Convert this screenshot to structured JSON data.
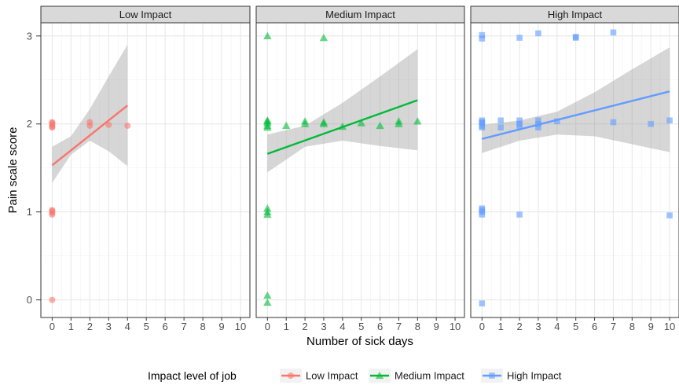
{
  "chart_data": {
    "type": "scatter",
    "facet_by": "Impact level of job",
    "facets": [
      "Low Impact",
      "Medium Impact",
      "High Impact"
    ],
    "xlabel": "Number of sick days",
    "ylabel": "Pain scale score",
    "xlim": [
      -0.6,
      10.5
    ],
    "ylim": [
      -0.2,
      3.15
    ],
    "x_ticks": [
      "0",
      "1",
      "2",
      "3",
      "4",
      "5",
      "6",
      "7",
      "8",
      "9",
      "10"
    ],
    "y_ticks": [
      "0",
      "1",
      "2",
      "3"
    ],
    "grid": true,
    "theme": "bw",
    "legend": {
      "title": "Impact level of job",
      "position": "bottom",
      "items": [
        "Low Impact",
        "Medium Impact",
        "High Impact"
      ]
    },
    "series": [
      {
        "name": "Low Impact",
        "color": "#F8766D",
        "marker": "circle",
        "points": [
          [
            0,
            2.02
          ],
          [
            0,
            1.99
          ],
          [
            0,
            1.97
          ],
          [
            0,
            2.01
          ],
          [
            0,
            1.96
          ],
          [
            0,
            1.02
          ],
          [
            0,
            0.99
          ],
          [
            0,
            0.97
          ],
          [
            0,
            1.01
          ],
          [
            0,
            0.0
          ],
          [
            2,
            2.02
          ],
          [
            2,
            1.98
          ],
          [
            3,
            1.99
          ],
          [
            4,
            1.98
          ]
        ],
        "fit": {
          "x": [
            0,
            4
          ],
          "y": [
            1.53,
            2.21
          ]
        },
        "ci": {
          "x": [
            0,
            1,
            2,
            3,
            4
          ],
          "lower": [
            1.33,
            1.65,
            1.81,
            1.69,
            1.52
          ],
          "upper": [
            1.74,
            1.86,
            2.17,
            2.54,
            2.9
          ]
        }
      },
      {
        "name": "Medium Impact",
        "color": "#00BA38",
        "marker": "triangle",
        "points": [
          [
            0,
            3.0
          ],
          [
            3,
            2.98
          ],
          [
            0,
            2.04
          ],
          [
            0,
            2.01
          ],
          [
            0,
            1.98
          ],
          [
            0,
            1.96
          ],
          [
            0,
            2.03
          ],
          [
            1,
            1.98
          ],
          [
            2,
            2.03
          ],
          [
            2,
            2.0
          ],
          [
            3,
            2.02
          ],
          [
            3,
            2.0
          ],
          [
            4,
            1.97
          ],
          [
            5,
            2.01
          ],
          [
            6,
            1.98
          ],
          [
            7,
            2.03
          ],
          [
            7,
            2.0
          ],
          [
            8,
            2.03
          ],
          [
            0,
            1.04
          ],
          [
            0,
            1.0
          ],
          [
            0,
            0.97
          ],
          [
            0,
            0.05
          ],
          [
            0,
            -0.03
          ]
        ],
        "fit": {
          "x": [
            0,
            8
          ],
          "y": [
            1.66,
            2.27
          ]
        },
        "ci": {
          "x": [
            0,
            2,
            4,
            6,
            8
          ],
          "lower": [
            1.45,
            1.74,
            1.81,
            1.75,
            1.7
          ],
          "upper": [
            1.88,
            1.98,
            2.24,
            2.54,
            2.85
          ]
        }
      },
      {
        "name": "High Impact",
        "color": "#619CFF",
        "marker": "square",
        "points": [
          [
            0,
            3.01
          ],
          [
            0,
            2.97
          ],
          [
            2,
            2.98
          ],
          [
            3,
            3.03
          ],
          [
            5,
            2.99
          ],
          [
            5,
            2.98
          ],
          [
            7,
            3.04
          ],
          [
            0,
            2.04
          ],
          [
            0,
            2.01
          ],
          [
            0,
            1.98
          ],
          [
            0,
            1.96
          ],
          [
            0,
            2.02
          ],
          [
            1,
            2.04
          ],
          [
            1,
            1.96
          ],
          [
            2,
            2.04
          ],
          [
            2,
            2.0
          ],
          [
            2,
            1.97
          ],
          [
            3,
            2.04
          ],
          [
            3,
            2.0
          ],
          [
            3,
            1.96
          ],
          [
            4,
            2.03
          ],
          [
            7,
            2.02
          ],
          [
            9,
            2.0
          ],
          [
            10,
            2.04
          ],
          [
            0,
            1.04
          ],
          [
            0,
            1.0
          ],
          [
            0,
            0.97
          ],
          [
            0,
            1.02
          ],
          [
            2,
            0.97
          ],
          [
            10,
            0.96
          ],
          [
            0,
            -0.04
          ]
        ],
        "fit": {
          "x": [
            0,
            10
          ],
          "y": [
            1.83,
            2.37
          ]
        },
        "ci": {
          "x": [
            0,
            2,
            4,
            6,
            8,
            10
          ],
          "lower": [
            1.67,
            1.81,
            1.88,
            1.86,
            1.77,
            1.68
          ],
          "upper": [
            1.99,
            2.04,
            2.14,
            2.36,
            2.62,
            2.87
          ]
        }
      }
    ]
  }
}
